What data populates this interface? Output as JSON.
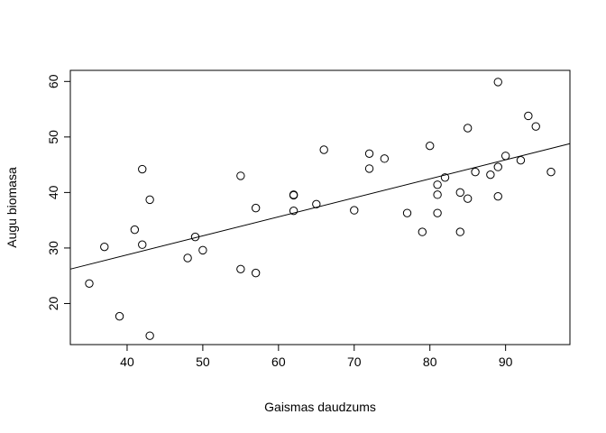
{
  "chart_data": {
    "type": "scatter",
    "title": "",
    "xlabel": "Gaismas daudzums",
    "ylabel": "Augu biomasa",
    "xlim": [
      32.5,
      98.5
    ],
    "ylim": [
      12.6,
      62.0
    ],
    "x_ticks": [
      40,
      50,
      60,
      70,
      80,
      90
    ],
    "y_ticks": [
      20,
      30,
      40,
      50,
      60
    ],
    "grid": false,
    "legend": "none",
    "point_style": "open-circle",
    "point_color": "#000000",
    "points": [
      {
        "x": 35,
        "y": 23.6
      },
      {
        "x": 37,
        "y": 30.2
      },
      {
        "x": 39,
        "y": 17.7
      },
      {
        "x": 41,
        "y": 33.3
      },
      {
        "x": 42,
        "y": 44.2
      },
      {
        "x": 42,
        "y": 30.6
      },
      {
        "x": 43,
        "y": 38.7
      },
      {
        "x": 43,
        "y": 14.2
      },
      {
        "x": 48,
        "y": 28.2
      },
      {
        "x": 49,
        "y": 32.0
      },
      {
        "x": 50,
        "y": 29.6
      },
      {
        "x": 55,
        "y": 43.0
      },
      {
        "x": 55,
        "y": 26.2
      },
      {
        "x": 57,
        "y": 37.2
      },
      {
        "x": 57,
        "y": 25.5
      },
      {
        "x": 62,
        "y": 39.5
      },
      {
        "x": 62,
        "y": 39.6
      },
      {
        "x": 62,
        "y": 36.7
      },
      {
        "x": 65,
        "y": 37.9
      },
      {
        "x": 66,
        "y": 47.7
      },
      {
        "x": 70,
        "y": 36.8
      },
      {
        "x": 72,
        "y": 47.0
      },
      {
        "x": 72,
        "y": 44.3
      },
      {
        "x": 74,
        "y": 46.1
      },
      {
        "x": 77,
        "y": 36.3
      },
      {
        "x": 79,
        "y": 32.9
      },
      {
        "x": 80,
        "y": 48.4
      },
      {
        "x": 81,
        "y": 41.4
      },
      {
        "x": 81,
        "y": 39.6
      },
      {
        "x": 81,
        "y": 36.3
      },
      {
        "x": 82,
        "y": 42.7
      },
      {
        "x": 84,
        "y": 40.0
      },
      {
        "x": 84,
        "y": 32.9
      },
      {
        "x": 85,
        "y": 51.6
      },
      {
        "x": 85,
        "y": 38.9
      },
      {
        "x": 86,
        "y": 43.7
      },
      {
        "x": 88,
        "y": 43.2
      },
      {
        "x": 89,
        "y": 59.9
      },
      {
        "x": 89,
        "y": 44.6
      },
      {
        "x": 89,
        "y": 39.3
      },
      {
        "x": 90,
        "y": 46.6
      },
      {
        "x": 92,
        "y": 45.8
      },
      {
        "x": 93,
        "y": 53.8
      },
      {
        "x": 94,
        "y": 51.9
      },
      {
        "x": 96,
        "y": 43.7
      }
    ],
    "regression_line": {
      "x": [
        32.5,
        98.5
      ],
      "y": [
        26.2,
        48.8
      ]
    }
  }
}
